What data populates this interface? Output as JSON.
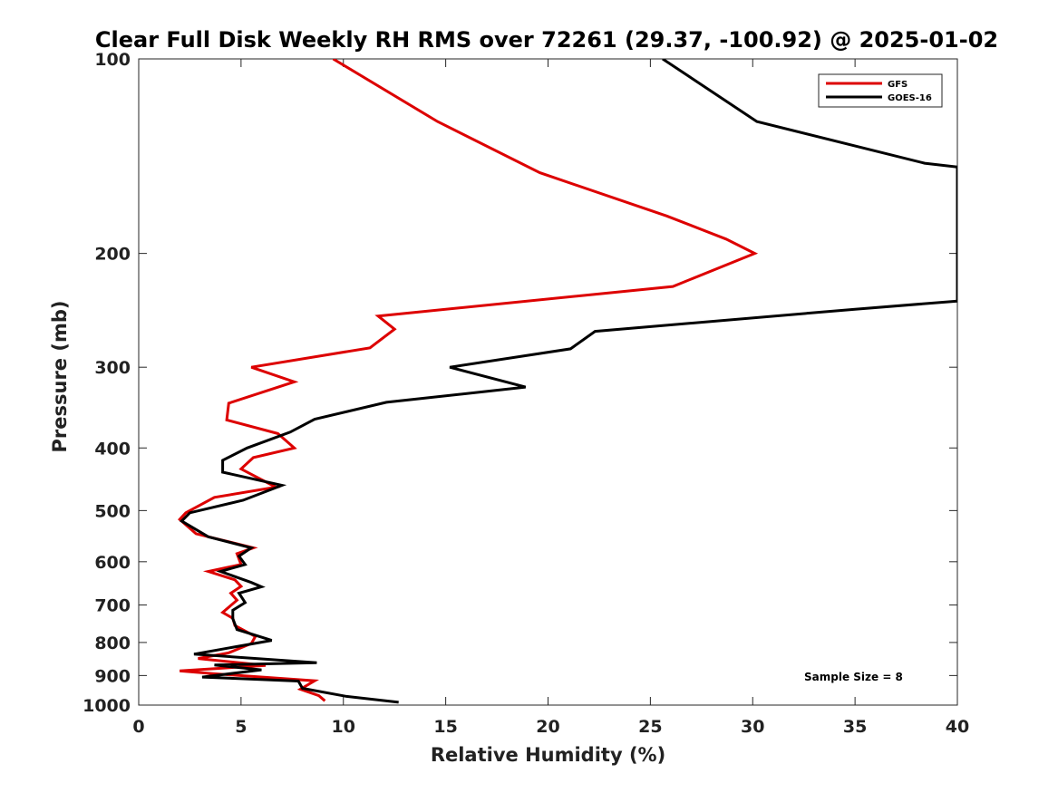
{
  "chart_data": {
    "type": "line",
    "title": "Clear Full Disk Weekly RH RMS over 72261 (29.37, -100.92) @ 2025-01-02",
    "xlabel": "Relative Humidity (%)",
    "ylabel": "Pressure (mb)",
    "xlim": [
      0,
      40
    ],
    "ylim": [
      100,
      1000
    ],
    "y_scale": "log",
    "y_reversed": true,
    "x_ticks": [
      "0",
      "5",
      "10",
      "15",
      "20",
      "25",
      "30",
      "35",
      "40"
    ],
    "y_ticks": [
      "100",
      "200",
      "300",
      "400",
      "500",
      "600",
      "700",
      "800",
      "900",
      "1000"
    ],
    "grid": false,
    "legend_position": "top-right",
    "annotation": "Sample Size = 8",
    "series": [
      {
        "name": "GFS",
        "color": "#dd0000",
        "points": [
          [
            9.5,
            100
          ],
          [
            14.6,
            125
          ],
          [
            19.6,
            150
          ],
          [
            25.8,
            175
          ],
          [
            28.7,
            190
          ],
          [
            30.1,
            200
          ],
          [
            26.1,
            225
          ],
          [
            11.7,
            250
          ],
          [
            12.5,
            262
          ],
          [
            11.3,
            280
          ],
          [
            5.5,
            300
          ],
          [
            7.6,
            316
          ],
          [
            4.4,
            341
          ],
          [
            4.3,
            362
          ],
          [
            6.8,
            380
          ],
          [
            7.6,
            400
          ],
          [
            5.6,
            414
          ],
          [
            5.0,
            431
          ],
          [
            6.7,
            460
          ],
          [
            3.7,
            477
          ],
          [
            2.3,
            504
          ],
          [
            2.0,
            516
          ],
          [
            2.8,
            543
          ],
          [
            5.6,
            571
          ],
          [
            4.8,
            583
          ],
          [
            5.0,
            606
          ],
          [
            3.4,
            621
          ],
          [
            4.7,
            640
          ],
          [
            5.0,
            655
          ],
          [
            4.5,
            671
          ],
          [
            4.8,
            688
          ],
          [
            4.1,
            719
          ],
          [
            4.6,
            734
          ],
          [
            4.7,
            753
          ],
          [
            5.7,
            783
          ],
          [
            5.5,
            803
          ],
          [
            4.4,
            830
          ],
          [
            2.9,
            847
          ],
          [
            6.2,
            868
          ],
          [
            2.0,
            885
          ],
          [
            3.6,
            894
          ],
          [
            8.6,
            917
          ],
          [
            7.9,
            945
          ],
          [
            8.8,
            967
          ],
          [
            9.1,
            985
          ]
        ]
      },
      {
        "name": "GOES-16",
        "color": "#000000",
        "points": [
          [
            25.6,
            100
          ],
          [
            30.2,
            125
          ],
          [
            38.4,
            145
          ],
          [
            40.0,
            147
          ],
          [
            40.0,
            237
          ],
          [
            35.0,
            244
          ],
          [
            22.3,
            264
          ],
          [
            21.1,
            281
          ],
          [
            15.2,
            300
          ],
          [
            18.9,
            322
          ],
          [
            12.1,
            340
          ],
          [
            8.6,
            361
          ],
          [
            7.4,
            378
          ],
          [
            5.3,
            400
          ],
          [
            4.1,
            418
          ],
          [
            4.1,
            436
          ],
          [
            7.0,
            457
          ],
          [
            5.1,
            482
          ],
          [
            2.5,
            504
          ],
          [
            2.1,
            519
          ],
          [
            3.4,
            549
          ],
          [
            5.5,
            571
          ],
          [
            4.9,
            588
          ],
          [
            5.2,
            606
          ],
          [
            4.0,
            621
          ],
          [
            5.5,
            646
          ],
          [
            6.0,
            656
          ],
          [
            4.9,
            671
          ],
          [
            5.2,
            694
          ],
          [
            4.6,
            713
          ],
          [
            4.6,
            735
          ],
          [
            4.8,
            764
          ],
          [
            6.5,
            794
          ],
          [
            2.7,
            834
          ],
          [
            8.7,
            860
          ],
          [
            3.7,
            867
          ],
          [
            6.0,
            882
          ],
          [
            3.1,
            905
          ],
          [
            7.8,
            918
          ],
          [
            8.0,
            942
          ],
          [
            10.1,
            969
          ],
          [
            12.7,
            990
          ]
        ]
      }
    ]
  }
}
